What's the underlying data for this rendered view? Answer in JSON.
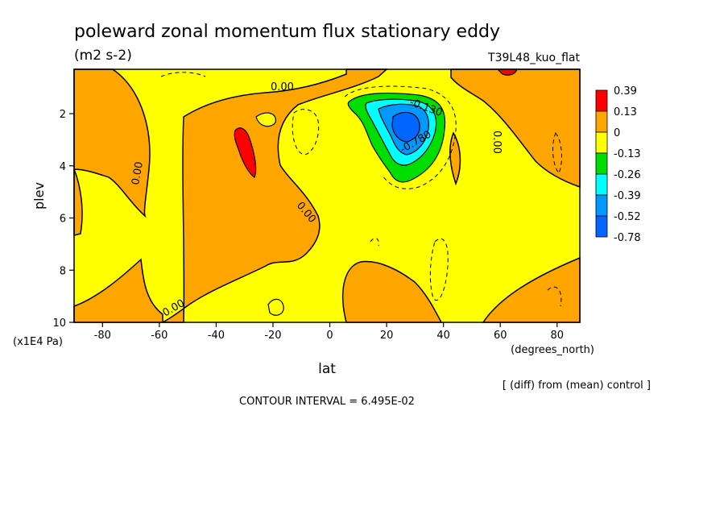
{
  "chart_data": {
    "type": "heatmap",
    "title": "poleward zonal momentum flux stationary eddy",
    "units": "(m2 s-2)",
    "run_label": "T39L48_kuo_flat",
    "xlabel": "lat",
    "x_units": "(degrees_north)",
    "ylabel": "plev",
    "y_units": "(x1E4 Pa)",
    "xlim": [
      -90,
      88
    ],
    "ylim": [
      10,
      0.3
    ],
    "x_ticks": [
      "-80",
      "-60",
      "-40",
      "-20",
      "0",
      "20",
      "40",
      "60",
      "80"
    ],
    "x_tick_values": [
      -80,
      -60,
      -40,
      -20,
      0,
      20,
      40,
      60,
      80
    ],
    "y_ticks": [
      "2",
      "4",
      "6",
      "8",
      "10"
    ],
    "y_tick_values": [
      2,
      4,
      6,
      8,
      10
    ],
    "legend": {
      "placement": "right",
      "labels": [
        "0.39",
        "0.13",
        "0",
        "-0.13",
        "-0.26",
        "-0.39",
        "-0.52",
        "-0.78"
      ],
      "colors": [
        "#ff0000",
        "#ffa500",
        "#ffff00",
        "#00dd00",
        "#00ffff",
        "#0099ff",
        "#0066ff",
        "#ffffff"
      ]
    },
    "contour_labels": [
      {
        "text": "0.00",
        "x": -13,
        "y": 1.1
      },
      {
        "text": "0.00",
        "x": -67,
        "y": 4.8
      },
      {
        "text": "0.00",
        "x": -8,
        "y": 5.7
      },
      {
        "text": "0.00",
        "x": -52,
        "y": 9.4
      },
      {
        "text": "0.00",
        "x": 60,
        "y": 2.8
      },
      {
        "text": "-0.130",
        "x": 33,
        "y": 1.6
      },
      {
        "text": "-0.780",
        "x": 31,
        "y": 2.9
      }
    ],
    "footer_right": "[ (diff) from (mean) control ]",
    "contour_interval": "CONTOUR INTERVAL = 6.495E-02"
  }
}
